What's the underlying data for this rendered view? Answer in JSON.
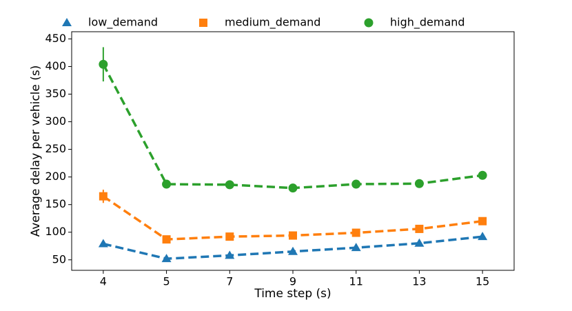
{
  "chart_data": {
    "type": "line",
    "x_label": "Time step (s)",
    "y_label": "Average delay per vehicle (s)",
    "categories": [
      "4",
      "5",
      "7",
      "9",
      "11",
      "13",
      "15"
    ],
    "series": [
      {
        "name": "low_demand",
        "color": "#1f77b4",
        "marker": "triangle",
        "values": [
          79,
          52,
          58,
          65,
          72,
          80,
          92
        ],
        "errors": [
          3,
          2,
          2,
          2,
          2,
          2,
          3
        ]
      },
      {
        "name": "medium_demand",
        "color": "#ff7f0e",
        "marker": "square",
        "values": [
          165,
          87,
          92,
          94,
          99,
          106,
          120
        ],
        "errors": [
          12,
          3,
          3,
          3,
          3,
          3,
          4
        ]
      },
      {
        "name": "high_demand",
        "color": "#2ca02c",
        "marker": "circle",
        "values": [
          404,
          187,
          186,
          180,
          187,
          188,
          203
        ],
        "errors": [
          31,
          6,
          5,
          4,
          4,
          4,
          6
        ]
      }
    ],
    "ylim": [
      31,
      463
    ],
    "yticks": [
      50,
      100,
      150,
      200,
      250,
      300,
      350,
      400,
      450
    ],
    "legend": "top",
    "line_style": "dashed"
  }
}
